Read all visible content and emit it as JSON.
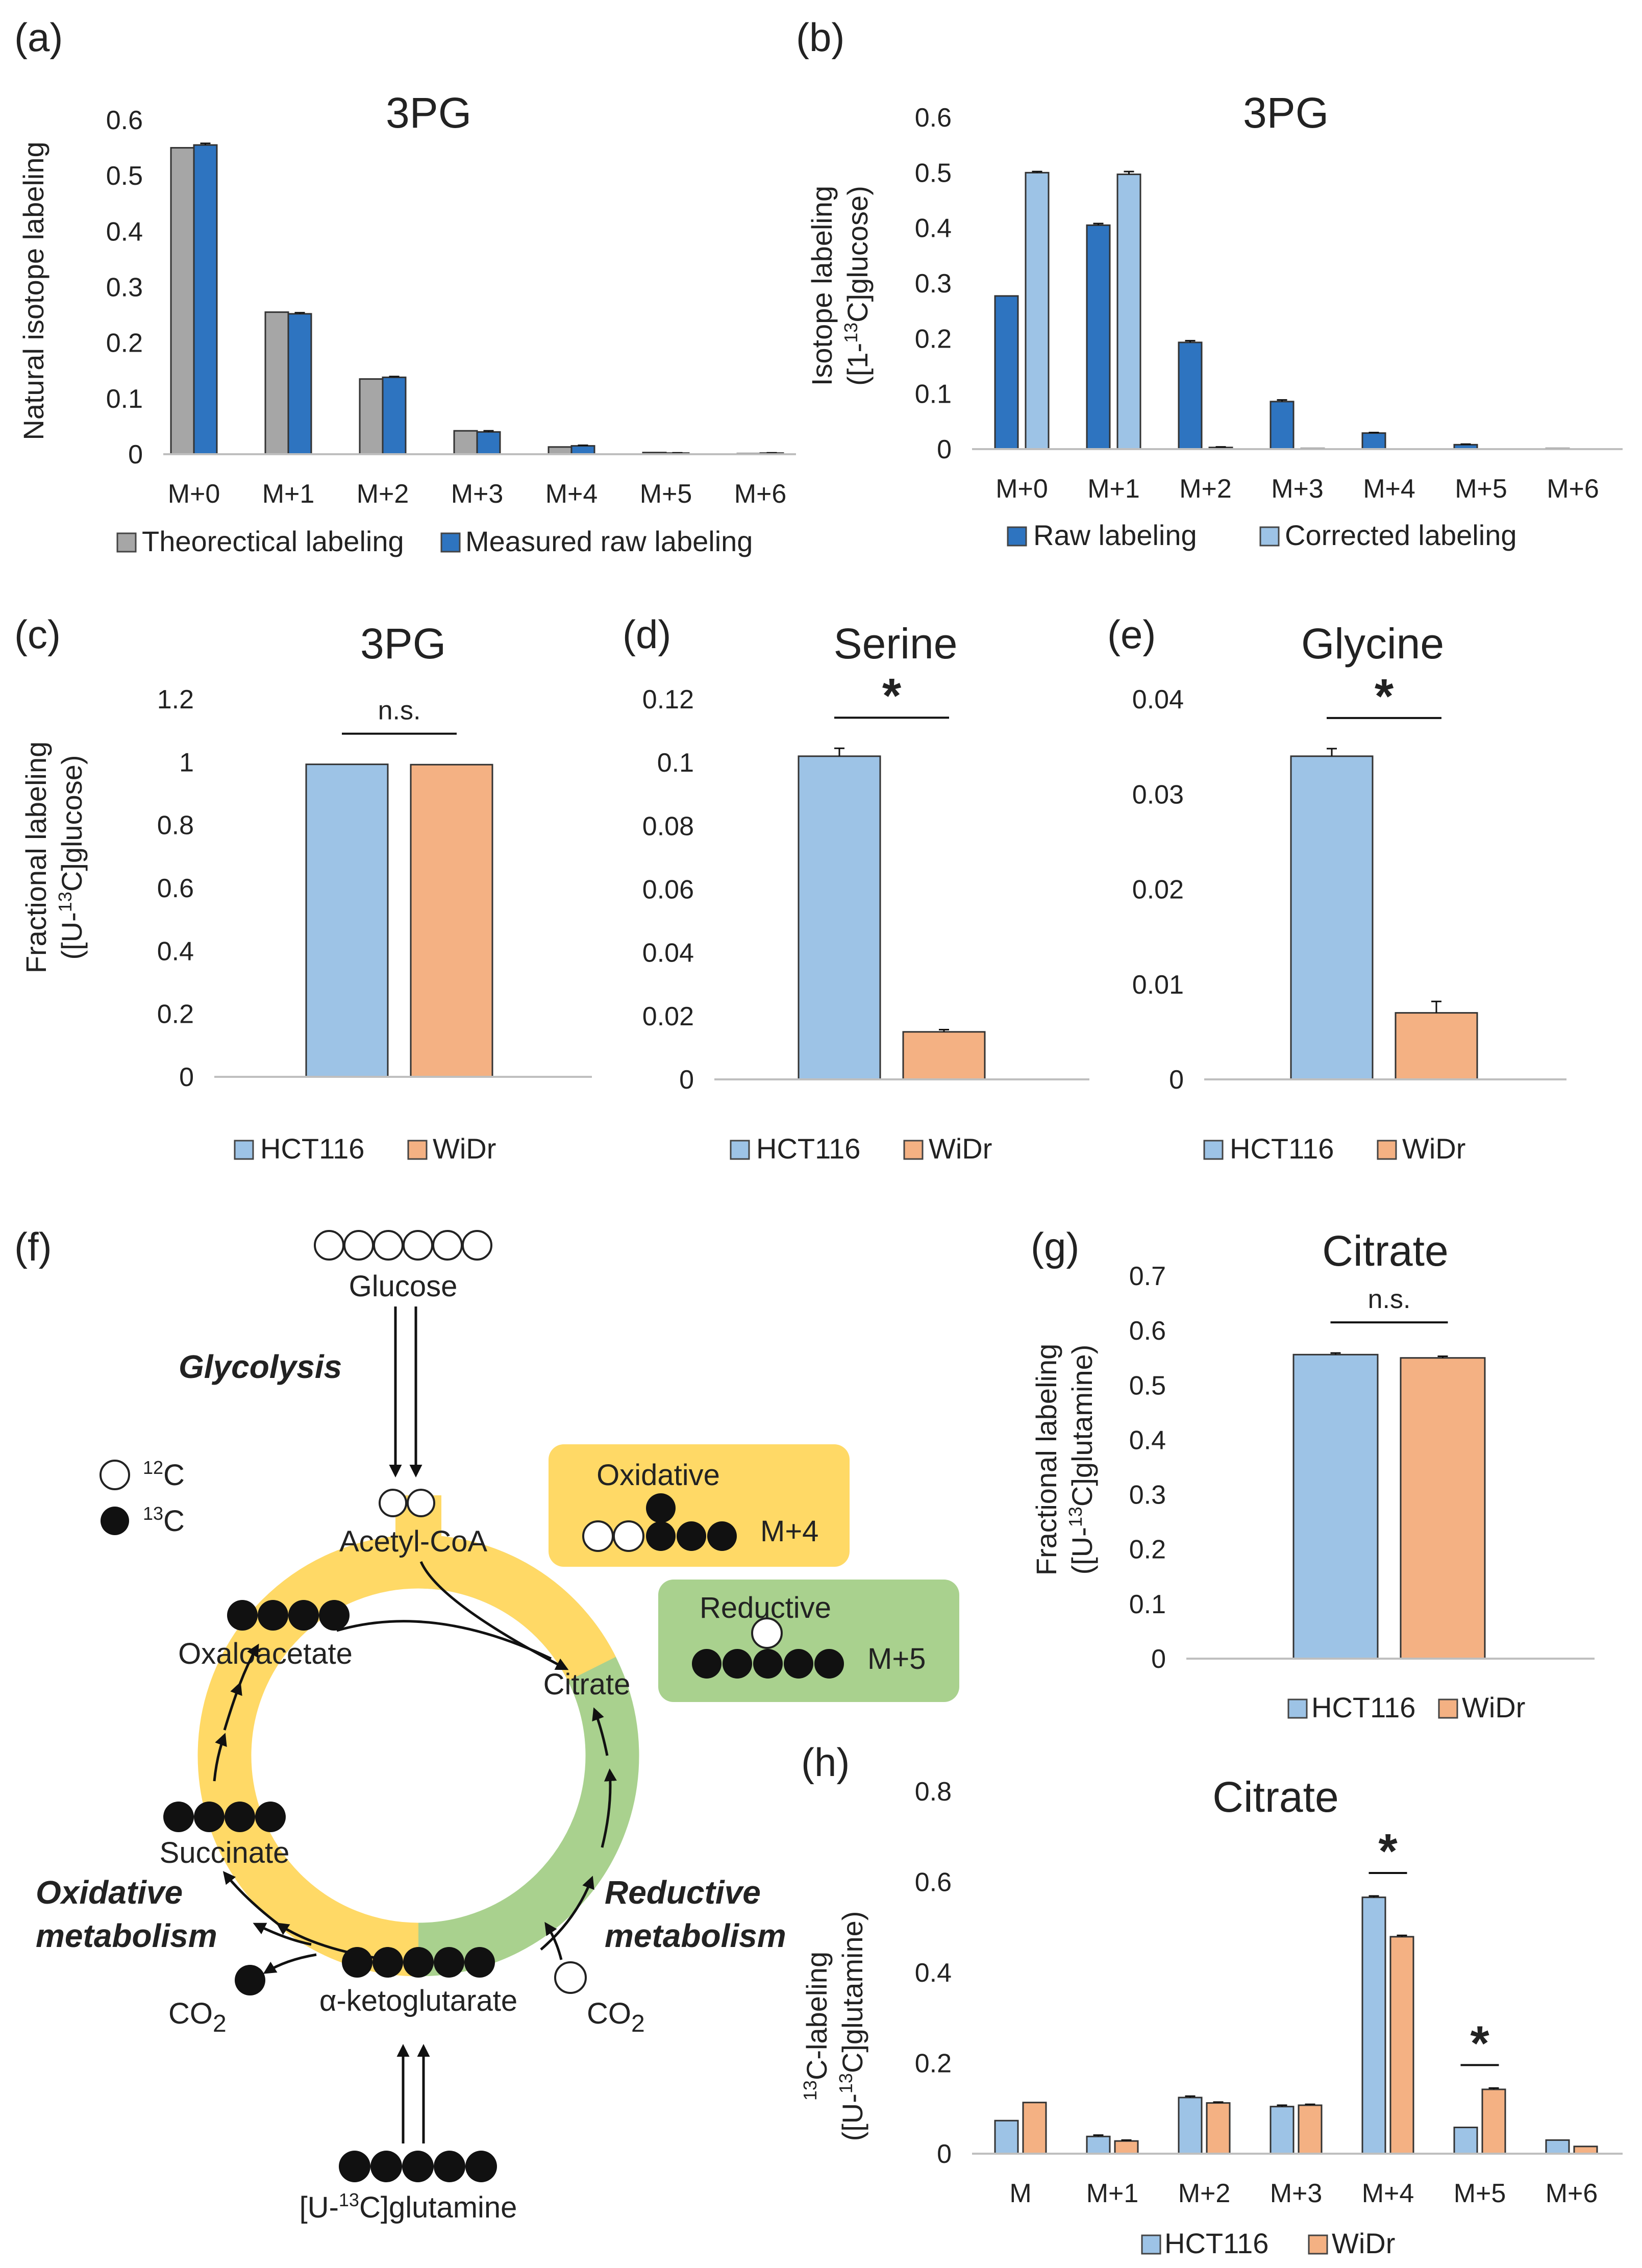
{
  "colors": {
    "gray": "#a6a6a6",
    "dark_blue": "#2e74c0",
    "light_blue": "#9dc3e6",
    "orange": "#f4b183",
    "yellow": "#ffd966",
    "green": "#a9d18e",
    "axis": "#bfbfbf"
  },
  "chart_data": [
    {
      "id": "a",
      "type": "bar",
      "panel_label": "(a)",
      "title": "3PG",
      "ylabel": "Natural isotope labeling",
      "categories": [
        "M+0",
        "M+1",
        "M+2",
        "M+3",
        "M+4",
        "M+5",
        "M+6"
      ],
      "series": [
        {
          "name": "Theorectical labeling",
          "color_key": "gray",
          "values": [
            0.55,
            0.255,
            0.135,
            0.042,
            0.013,
            0.003,
            0.001
          ]
        },
        {
          "name": "Measured raw labeling",
          "color_key": "dark_blue",
          "values": [
            0.555,
            0.252,
            0.138,
            0.04,
            0.015,
            0.002,
            0.002
          ],
          "errors": [
            0.003,
            0.002,
            0.0015,
            0.002,
            0.001,
            0.0005,
            0.0005
          ]
        }
      ],
      "ylim": [
        0,
        0.6
      ],
      "yticks": [
        0,
        0.1,
        0.2,
        0.3,
        0.4,
        0.5,
        0.6
      ],
      "ytick_labels": [
        "0",
        "0.1",
        "0.2",
        "0.3",
        "0.4",
        "0.5",
        "0.6"
      ],
      "grid": false,
      "legend": "bottom"
    },
    {
      "id": "b",
      "type": "bar",
      "panel_label": "(b)",
      "title": "3PG",
      "ylabel_main": "Isotope labeling",
      "ylabel_pre": "([1-",
      "ylabel_sup": "13",
      "ylabel_post": "C]glucose)",
      "categories": [
        "M+0",
        "M+1",
        "M+2",
        "M+3",
        "M+4",
        "M+5",
        "M+6"
      ],
      "series": [
        {
          "name": "Raw labeling",
          "color_key": "dark_blue",
          "values": [
            0.277,
            0.405,
            0.193,
            0.086,
            0.029,
            0.008,
            0.001
          ],
          "errors": [
            0,
            0.003,
            0.003,
            0.003,
            0.001,
            0.001,
            0
          ]
        },
        {
          "name": "Corrected labeling",
          "color_key": "light_blue",
          "values": [
            0.5,
            0.497,
            0.003,
            0.001,
            0,
            0,
            0
          ],
          "errors": [
            0.002,
            0.005,
            0.001,
            0,
            0,
            0,
            0
          ]
        }
      ],
      "ylim": [
        0,
        0.6
      ],
      "yticks": [
        0,
        0.1,
        0.2,
        0.3,
        0.4,
        0.5,
        0.6
      ],
      "ytick_labels": [
        "0",
        "0.1",
        "0.2",
        "0.3",
        "0.4",
        "0.5",
        "0.6"
      ],
      "grid": false,
      "legend": "bottom"
    },
    {
      "id": "c",
      "type": "bar",
      "panel_label": "(c)",
      "title": "3PG",
      "ylabel_main": "Fractional labeling",
      "ylabel_pre": "([U-",
      "ylabel_sup": "13",
      "ylabel_post": "C]glucose)",
      "categories": [
        ""
      ],
      "series": [
        {
          "name": "HCT116",
          "color_key": "light_blue",
          "values": [
            0.993
          ]
        },
        {
          "name": "WiDr",
          "color_key": "orange",
          "values": [
            0.992
          ]
        }
      ],
      "significance": [
        {
          "label": "n.s."
        }
      ],
      "ylim": [
        0,
        1.2
      ],
      "yticks": [
        0,
        0.2,
        0.4,
        0.6,
        0.8,
        1,
        1.2
      ],
      "ytick_labels": [
        "0",
        "0.2",
        "0.4",
        "0.6",
        "0.8",
        "1",
        "1.2"
      ],
      "grid": false,
      "legend": "bottom"
    },
    {
      "id": "d",
      "type": "bar",
      "panel_label": "(d)",
      "title": "Serine",
      "categories": [
        ""
      ],
      "series": [
        {
          "name": "HCT116",
          "color_key": "light_blue",
          "values": [
            0.102
          ],
          "errors": [
            0.0025
          ]
        },
        {
          "name": "WiDr",
          "color_key": "orange",
          "values": [
            0.015
          ],
          "errors": [
            0.0007
          ]
        }
      ],
      "significance": [
        {
          "label": "*"
        }
      ],
      "ylim": [
        0,
        0.12
      ],
      "yticks": [
        0,
        0.02,
        0.04,
        0.06,
        0.08,
        0.1,
        0.12
      ],
      "ytick_labels": [
        "0",
        "0.02",
        "0.04",
        "0.06",
        "0.08",
        "0.1",
        "0.12"
      ],
      "grid": false,
      "legend": "bottom"
    },
    {
      "id": "e",
      "type": "bar",
      "panel_label": "(e)",
      "title": "Glycine",
      "categories": [
        ""
      ],
      "series": [
        {
          "name": "HCT116",
          "color_key": "light_blue",
          "values": [
            0.034
          ],
          "errors": [
            0.0008
          ]
        },
        {
          "name": "WiDr",
          "color_key": "orange",
          "values": [
            0.007
          ],
          "errors": [
            0.0012
          ]
        }
      ],
      "significance": [
        {
          "label": "*"
        }
      ],
      "ylim": [
        0,
        0.04
      ],
      "yticks": [
        0,
        0.01,
        0.02,
        0.03,
        0.04
      ],
      "ytick_labels": [
        "0",
        "0.01",
        "0.02",
        "0.03",
        "0.04"
      ],
      "grid": false,
      "legend": "bottom"
    },
    {
      "id": "g",
      "type": "bar",
      "panel_label": "(g)",
      "title": "Citrate",
      "ylabel_main": "Fractional labeling",
      "ylabel_pre": "([U-",
      "ylabel_sup": "13",
      "ylabel_post": "C]glutamine)",
      "categories": [
        ""
      ],
      "series": [
        {
          "name": "HCT116",
          "color_key": "light_blue",
          "values": [
            0.556
          ],
          "errors": [
            0.003
          ]
        },
        {
          "name": "WiDr",
          "color_key": "orange",
          "values": [
            0.55
          ],
          "errors": [
            0.003
          ]
        }
      ],
      "significance": [
        {
          "label": "n.s."
        }
      ],
      "ylim": [
        0,
        0.7
      ],
      "yticks": [
        0,
        0.1,
        0.2,
        0.3,
        0.4,
        0.5,
        0.6,
        0.7
      ],
      "ytick_labels": [
        "0",
        "0.1",
        "0.2",
        "0.3",
        "0.4",
        "0.5",
        "0.6",
        "0.7"
      ],
      "grid": false,
      "legend": "bottom"
    },
    {
      "id": "h",
      "type": "bar",
      "panel_label": "(h)",
      "title": "Citrate",
      "ylabel_sup1": "13",
      "ylabel_main": "C-labeling",
      "ylabel_pre": "([U-",
      "ylabel_sup": "13",
      "ylabel_post": "C]glutamine)",
      "categories": [
        "M",
        "M+1",
        "M+2",
        "M+3",
        "M+4",
        "M+5",
        "M+6"
      ],
      "series": [
        {
          "name": "HCT116",
          "color_key": "light_blue",
          "values": [
            0.073,
            0.038,
            0.124,
            0.104,
            0.566,
            0.058,
            0.03
          ],
          "errors": [
            0,
            0.003,
            0.003,
            0.003,
            0.003,
            0,
            0
          ]
        },
        {
          "name": "WiDr",
          "color_key": "orange",
          "values": [
            0.113,
            0.028,
            0.112,
            0.107,
            0.479,
            0.142,
            0.016
          ],
          "errors": [
            0,
            0.002,
            0.002,
            0.002,
            0.003,
            0.003,
            0
          ]
        }
      ],
      "significance": [
        {
          "category_index": 4,
          "label": "*"
        },
        {
          "category_index": 5,
          "label": "*"
        }
      ],
      "ylim": [
        0,
        0.8
      ],
      "yticks": [
        0,
        0.2,
        0.4,
        0.6,
        0.8
      ],
      "ytick_labels": [
        "0",
        "0.2",
        "0.4",
        "0.6",
        "0.8"
      ],
      "grid": false,
      "legend": "bottom"
    }
  ],
  "pathway": {
    "panel_label": "(f)",
    "glucose": "Glucose",
    "glycolysis": "Glycolysis",
    "c12": "C",
    "c12_sup": "12",
    "c13": "C",
    "c13_sup": "13",
    "acetyl_coa": "Acetyl-CoA",
    "oxaloacetate": "Oxaloacetate",
    "citrate": "Citrate",
    "succinate": "Succinate",
    "akg": "α-ketoglutarate",
    "co2_left": "CO",
    "co2_left_sub": "2",
    "co2_right": "CO",
    "co2_right_sub": "2",
    "glutamine_pre": "[U-",
    "glutamine_sup": "13",
    "glutamine_post": "C]glutamine",
    "oxidative_metab_1": "Oxidative",
    "oxidative_metab_2": "metabolism",
    "reductive_metab_1": "Reductive",
    "reductive_metab_2": "metabolism",
    "ox_box_title": "Oxidative",
    "ox_box_label": "M+4",
    "red_box_title": "Reductive",
    "red_box_label": "M+5"
  }
}
